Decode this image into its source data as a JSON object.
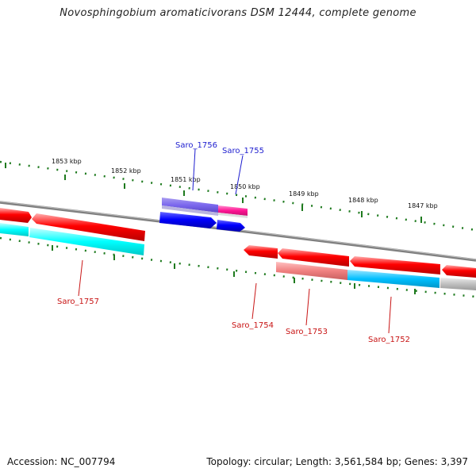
{
  "title": "Novosphingobium aromaticivorans DSM 12444, complete genome",
  "footer": {
    "accession": "Accession: NC_007794",
    "topology": "Topology: circular; Length: 3,561,584 bp; Genes: 3,397"
  },
  "scale_labels": [
    "1853 kbp",
    "1852 kbp",
    "1851 kbp",
    "1850 kbp",
    "1849 kbp",
    "1848 kbp",
    "1847 kbp"
  ],
  "gene_labels": {
    "saro_1756": "Saro_1756",
    "saro_1755": "Saro_1755",
    "saro_1757": "Saro_1757",
    "saro_1754": "Saro_1754",
    "saro_1753": "Saro_1753",
    "saro_1752": "Saro_1752"
  },
  "colors": {
    "backbone": "#808080",
    "ticks": "#1e7a1e",
    "cds_forward": "#ff0000",
    "cds_reverse": "#0000ff",
    "cds_pink": "#ff1493",
    "track_cyan": "#00ffff",
    "track_slate": "#7b68ee",
    "track_salmon": "#f08080",
    "track_sky": "#00bfff",
    "track_gray": "#c0c0c0",
    "label_blue": "#1e1ecf",
    "label_red": "#c81414"
  }
}
